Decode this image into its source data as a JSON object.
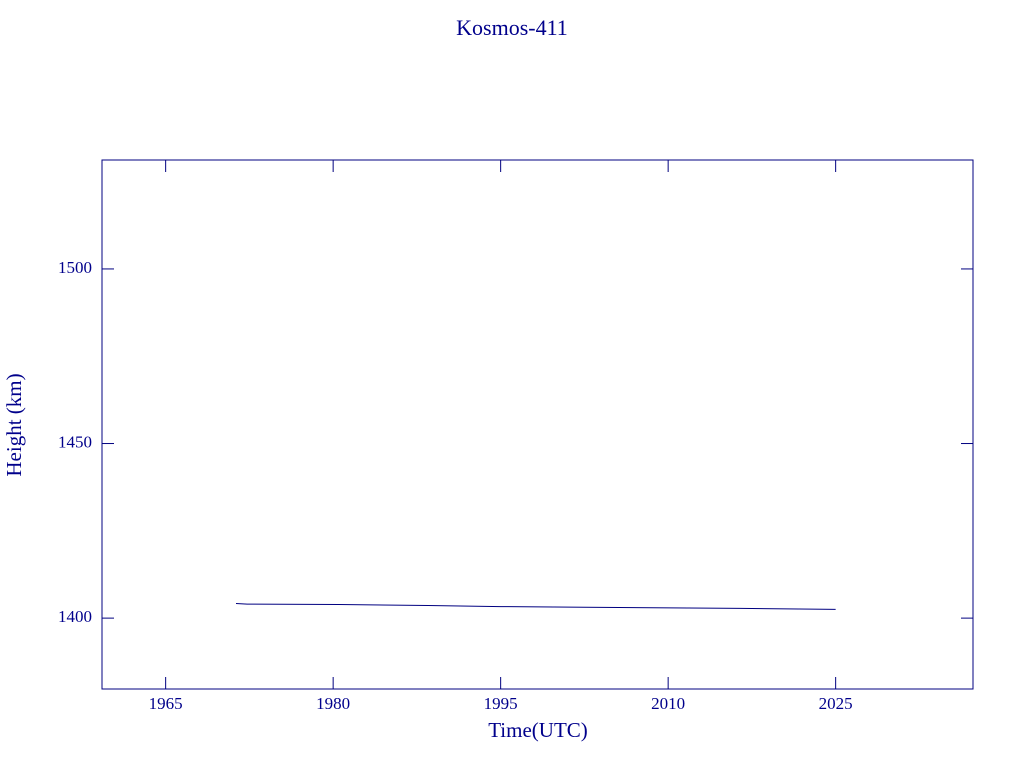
{
  "chart_data": {
    "type": "line",
    "title": "Kosmos-411",
    "x_label": "Time(UTC)",
    "y_label": "Height (km)",
    "x": [
      1971.3,
      1972.3,
      1980.5,
      1988.5,
      1995.0,
      2002.5,
      2016.5,
      2025.0
    ],
    "series": [
      {
        "name": "Kosmos-411",
        "color": "#000080",
        "values": [
          1404.2,
          1404.0,
          1403.9,
          1403.6,
          1403.3,
          1403.1,
          1402.8,
          1402.5
        ]
      }
    ],
    "xlim": [
      1959.3,
      2037.3
    ],
    "xticks": [
      1965,
      1980,
      1995,
      2010,
      2025
    ],
    "ylim": [
      1379.7,
      1531.2
    ],
    "yticks": [
      1400,
      1450,
      1500
    ],
    "grid": false
  }
}
